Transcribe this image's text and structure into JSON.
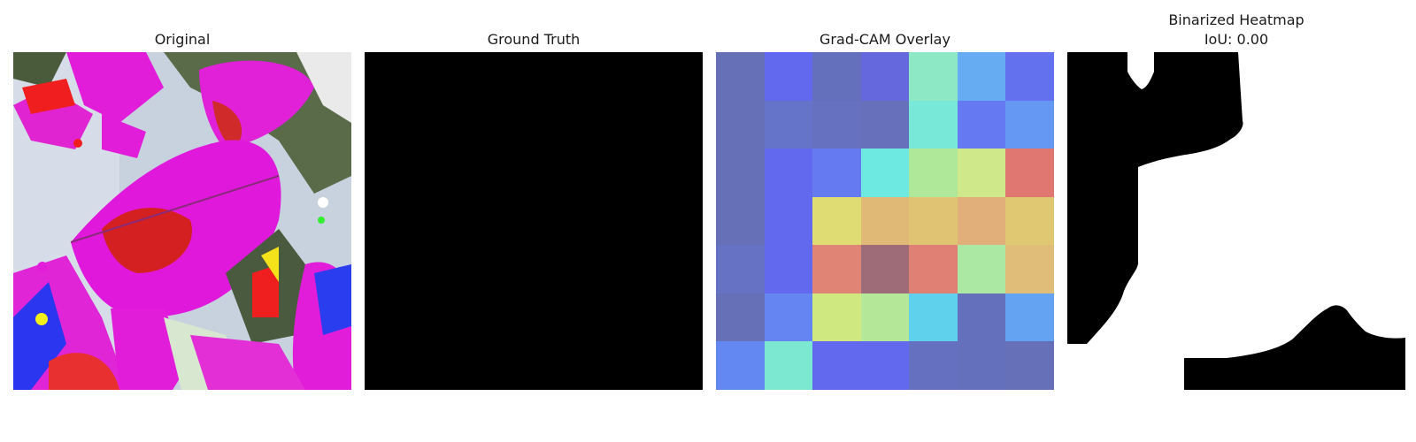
{
  "panels": [
    {
      "title": "Original"
    },
    {
      "title": "Ground Truth"
    },
    {
      "title": "Grad-CAM Overlay"
    },
    {
      "title": "Binarized Heatmap",
      "subtitle": "IoU: 0.00"
    }
  ],
  "gradcam_cells": [
    [
      "#6670b6",
      "#6369ee",
      "#6570bd",
      "#6468dc",
      "#8de8c5",
      "#65acf2",
      "#6371ef"
    ],
    [
      "#6670b6",
      "#6574c9",
      "#6671bf",
      "#6670bb",
      "#78e8d8",
      "#6479f2",
      "#6598f2"
    ],
    [
      "#6670b6",
      "#6369ee",
      "#6579f0",
      "#6ee9e1",
      "#aee898",
      "#cfe88a",
      "#e07771"
    ],
    [
      "#6670b6",
      "#6369ee",
      "#e0dc74",
      "#e0b977",
      "#e0c474",
      "#e0af7a",
      "#e0c873"
    ],
    [
      "#6673c5",
      "#6369ee",
      "#e08476",
      "#9d6c78",
      "#e08074",
      "#abe8a3",
      "#e0bd78"
    ],
    [
      "#6670b6",
      "#6585f2",
      "#cfe87f",
      "#b4e898",
      "#5fd1ec",
      "#6570bd",
      "#64a3f2"
    ],
    [
      "#6488f2",
      "#7de8d2",
      "#6369ee",
      "#6369ee",
      "#6570c0",
      "#6570bd",
      "#6670b8"
    ]
  ]
}
